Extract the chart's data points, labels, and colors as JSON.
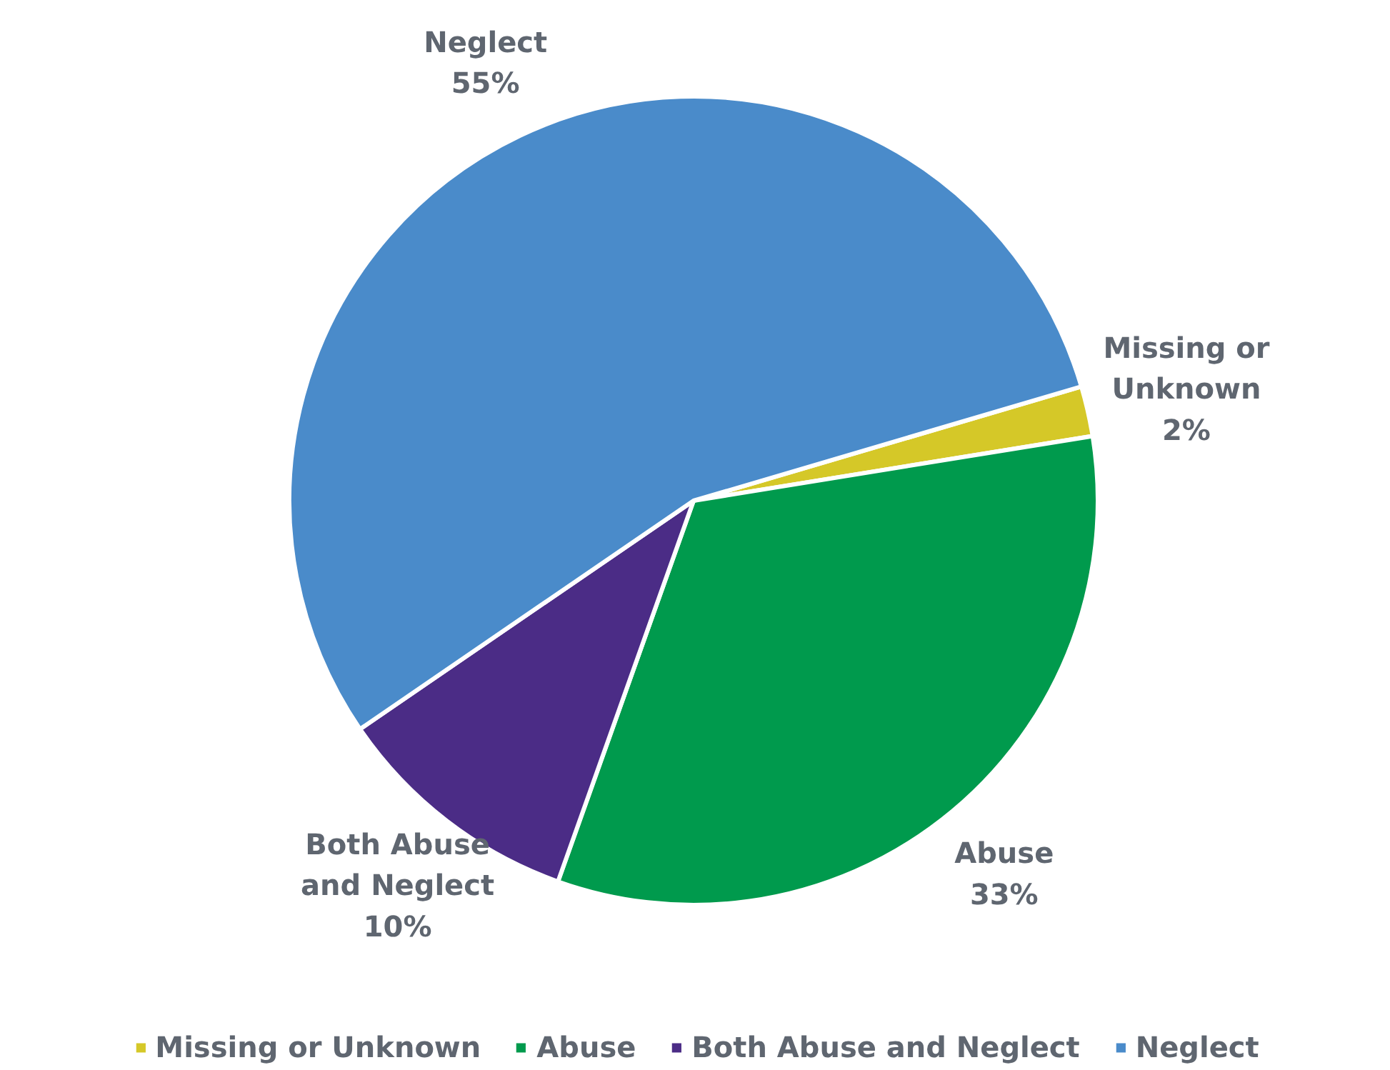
{
  "chart_data": {
    "type": "pie",
    "categories": [
      "Missing or Unknown",
      "Abuse",
      "Both Abuse and Neglect",
      "Neglect"
    ],
    "values": [
      2,
      33,
      10,
      55
    ],
    "value_labels": [
      "2%",
      "33%",
      "10%",
      "55%"
    ],
    "colors": [
      "#d5c828",
      "#009a4d",
      "#4b2c86",
      "#4a8bca"
    ],
    "legend": "bottom"
  }
}
